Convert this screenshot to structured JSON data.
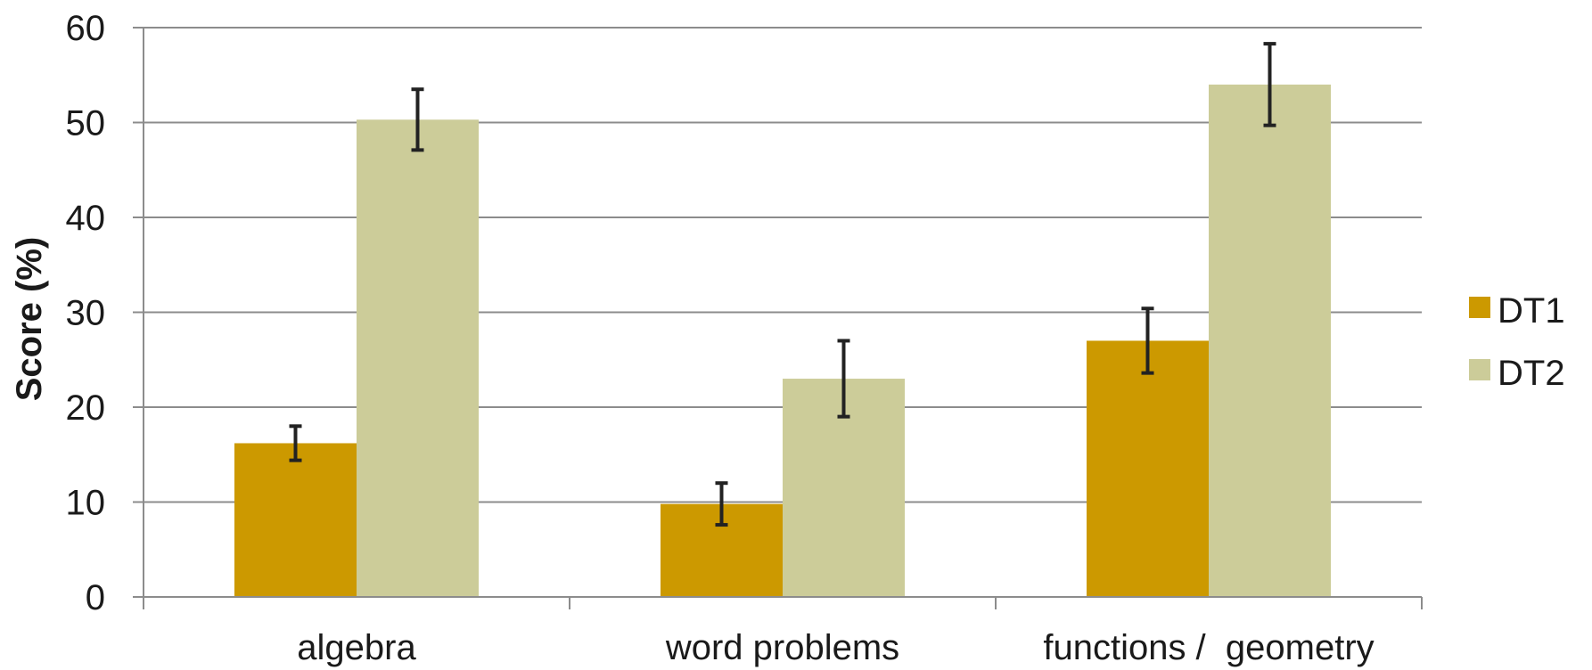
{
  "chart_data": {
    "type": "bar",
    "title": "",
    "xlabel": "",
    "ylabel": "Score (%)",
    "ylim": [
      0,
      60
    ],
    "yticks": [
      0,
      10,
      20,
      30,
      40,
      50,
      60
    ],
    "grid": true,
    "legend_position": "right",
    "categories": [
      "algebra",
      "word problems",
      "functions /  geometry"
    ],
    "series": [
      {
        "name": "DT1",
        "color": "#CC9900",
        "values": [
          16.2,
          9.8,
          27.0
        ],
        "errors": [
          1.8,
          2.2,
          3.4
        ]
      },
      {
        "name": "DT2",
        "color": "#CCCC99",
        "values": [
          50.3,
          23.0,
          54.0
        ],
        "errors": [
          3.2,
          4.0,
          4.3
        ]
      }
    ]
  }
}
